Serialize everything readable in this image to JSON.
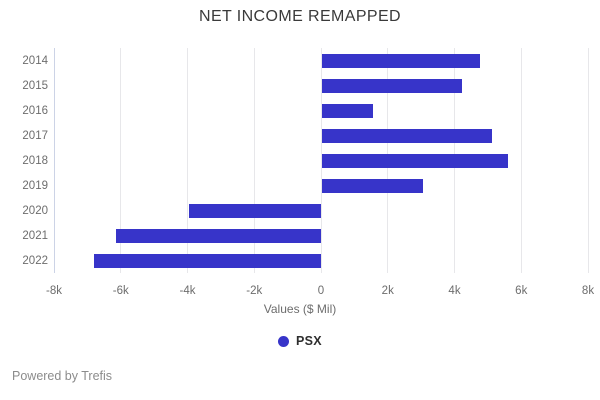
{
  "title": "NET INCOME REMAPPED",
  "chart_data": {
    "type": "bar",
    "orientation": "horizontal",
    "title": "NET INCOME REMAPPED",
    "categories": [
      "2014",
      "2015",
      "2016",
      "2017",
      "2018",
      "2019",
      "2020",
      "2021",
      "2022"
    ],
    "series": [
      {
        "name": "PSX",
        "values": [
          4750,
          4200,
          1550,
          5100,
          5600,
          3050,
          -3950,
          -6150,
          -6800
        ]
      }
    ],
    "xlabel": "Values ($ Mil)",
    "ylabel": "",
    "xlim": [
      -8000,
      8000
    ],
    "x_tick_values": [
      -8000,
      -6000,
      -4000,
      -2000,
      0,
      2000,
      4000,
      6000,
      8000
    ],
    "x_tick_labels": [
      "-8k",
      "-6k",
      "-4k",
      "-2k",
      "0",
      "2k",
      "4k",
      "6k",
      "8k"
    ],
    "grid": true,
    "legend_position": "bottom",
    "bar_color": "#3734c9",
    "gridline_color": "#e7e7ea"
  },
  "legend": {
    "dot_icon": "circle",
    "label": "PSX"
  },
  "footer": {
    "text": "Powered by Trefis"
  }
}
